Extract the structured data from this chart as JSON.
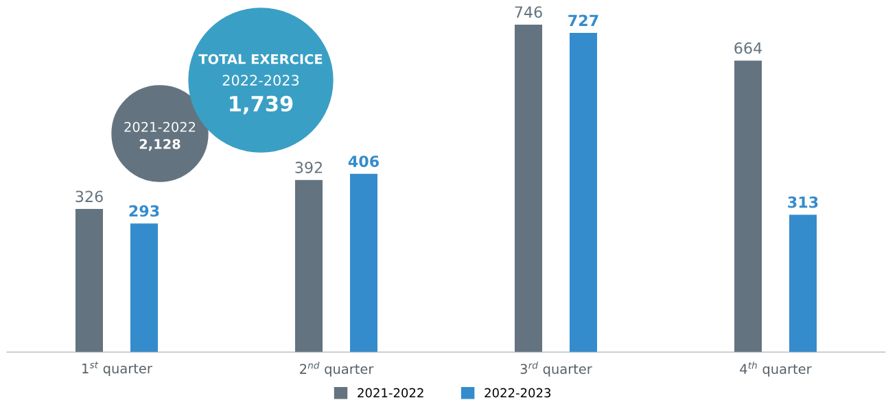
{
  "chart_data": {
    "type": "bar",
    "categories": [
      "1$^{st}$ quarter",
      "2$^{nd}$ quarter",
      "3$^{rd}$ quarter",
      "4$^{th}$ quarter"
    ],
    "series": [
      {
        "name": "2021-2022",
        "color": "#63737f",
        "values": [
          326,
          392,
          746,
          664
        ]
      },
      {
        "name": "2022-2023",
        "color": "#348ccc",
        "values": [
          293,
          406,
          727,
          313
        ]
      }
    ],
    "data_labels": true,
    "legend": "bottom",
    "grid": false,
    "annotations": [
      "TOTAL EXERCICE",
      "2022-2023",
      "1,739",
      "2021-2022",
      "2,128"
    ]
  }
}
